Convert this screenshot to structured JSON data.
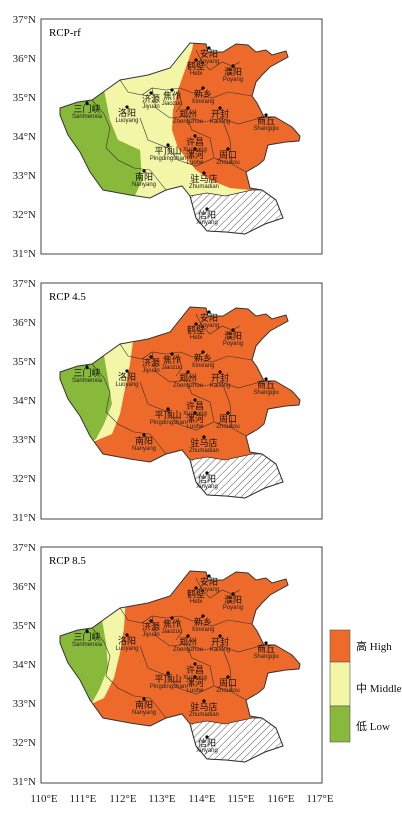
{
  "panels": [
    {
      "label": "RCP-rf"
    },
    {
      "label": "RCP 4.5"
    },
    {
      "label": "RCP 8.5"
    }
  ],
  "y_ticks": [
    "37°N",
    "36°N",
    "35°N",
    "34°N",
    "33°N",
    "32°N",
    "31°N"
  ],
  "x_ticks": [
    "110°E",
    "111°E",
    "112°E",
    "113°E",
    "114°E",
    "115°E",
    "116°E",
    "117°E"
  ],
  "cities": [
    {
      "cn": "安阳",
      "en": "Anyang"
    },
    {
      "cn": "鹤壁",
      "en": "Hebi"
    },
    {
      "cn": "濮阳",
      "en": "Puyang"
    },
    {
      "cn": "新乡",
      "en": "Xinxiang"
    },
    {
      "cn": "焦作",
      "en": "Jiaozuo"
    },
    {
      "cn": "济源",
      "en": "Jiyuan"
    },
    {
      "cn": "三门峡",
      "en": "Sanmenxia"
    },
    {
      "cn": "洛阳",
      "en": "Luoyang"
    },
    {
      "cn": "郑州",
      "en": "Zhengzhou"
    },
    {
      "cn": "开封",
      "en": "Kaifeng"
    },
    {
      "cn": "商丘",
      "en": "Shangqiu"
    },
    {
      "cn": "许昌",
      "en": "Xuchang"
    },
    {
      "cn": "平顶山",
      "en": "Pingdingshan"
    },
    {
      "cn": "漯河",
      "en": "Luohe"
    },
    {
      "cn": "周口",
      "en": "Zhoukou"
    },
    {
      "cn": "南阳",
      "en": "Nanyang"
    },
    {
      "cn": "驻马店",
      "en": "Zhumadian"
    },
    {
      "cn": "信阳",
      "en": "Xinyang"
    }
  ],
  "legend": [
    {
      "label": "高 High",
      "color": "#ee6a2a"
    },
    {
      "label": "中 Middle",
      "color": "#f3f6a6"
    },
    {
      "label": "低 Low",
      "color": "#88b93a"
    }
  ],
  "colors": {
    "high": "#ee6a2a",
    "middle": "#f3f6a6",
    "low": "#88b93a"
  }
}
